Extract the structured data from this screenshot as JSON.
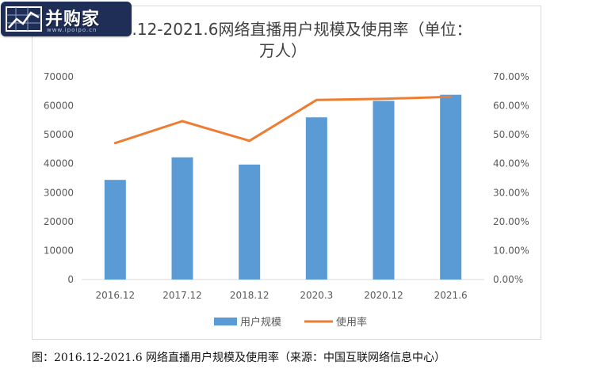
{
  "watermark": {
    "brand": "并购家",
    "url": "www.ipoipo.cn"
  },
  "caption": "图：2016.12-2021.6 网络直播用户规模及使用率（来源：中国互联网络信息中心）",
  "chart_data": {
    "type": "bar",
    "title": ".12-2021.6网络直播用户规模及使用率（单位：",
    "title_line2": "万人）",
    "categories": [
      "2016.12",
      "2017.12",
      "2018.12",
      "2020.3",
      "2020.12",
      "2021.6"
    ],
    "series": [
      {
        "name": "用户规模",
        "type": "bar",
        "axis": "left",
        "color": "#5b9bd5",
        "values": [
          34400,
          42200,
          39700,
          56000,
          61700,
          63800
        ]
      },
      {
        "name": "使用率",
        "type": "line",
        "axis": "right",
        "color": "#ed7d31",
        "values": [
          47.1,
          54.7,
          47.9,
          62.0,
          62.4,
          63.1
        ]
      }
    ],
    "ylim": [
      0,
      70000
    ],
    "y2lim": [
      0,
      70
    ],
    "yticks": [
      "0",
      "10000",
      "20000",
      "30000",
      "40000",
      "50000",
      "60000",
      "70000"
    ],
    "y2ticks": [
      "0.00%",
      "10.00%",
      "20.00%",
      "30.00%",
      "40.00%",
      "50.00%",
      "60.00%",
      "70.00%"
    ],
    "legend_position": "bottom",
    "grid": false
  }
}
